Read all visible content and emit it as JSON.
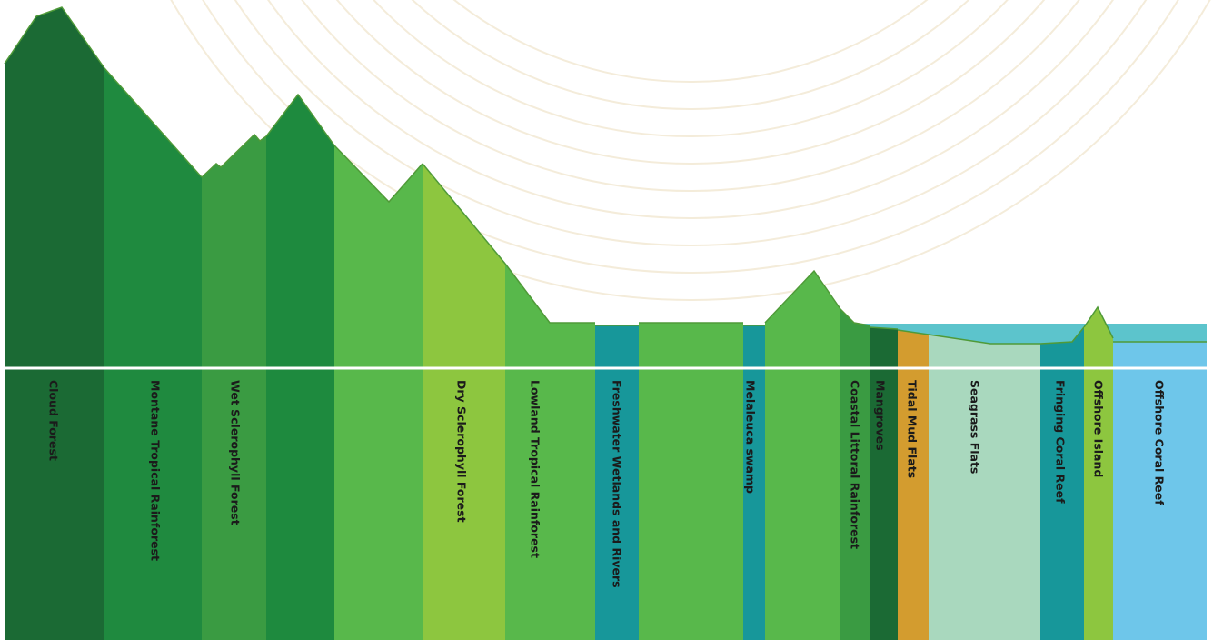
{
  "zone_labels": [
    "Cloud Forest",
    "Montane Tropical Rainforest",
    "Wet Sclerophyll Forest",
    "Dry Sclerophyll Forest",
    "Lowland Tropical Rainforest",
    "Freshwater Wetlands and Rivers",
    "Melaleuca swamp",
    "Coastal Littoral Rainforest",
    "Mangroves",
    "Tidal Mud Flats",
    "Seagrass Flats",
    "Fringing Coral Reef",
    "Offshore Island",
    "Offshore Coral Reef"
  ]
}
